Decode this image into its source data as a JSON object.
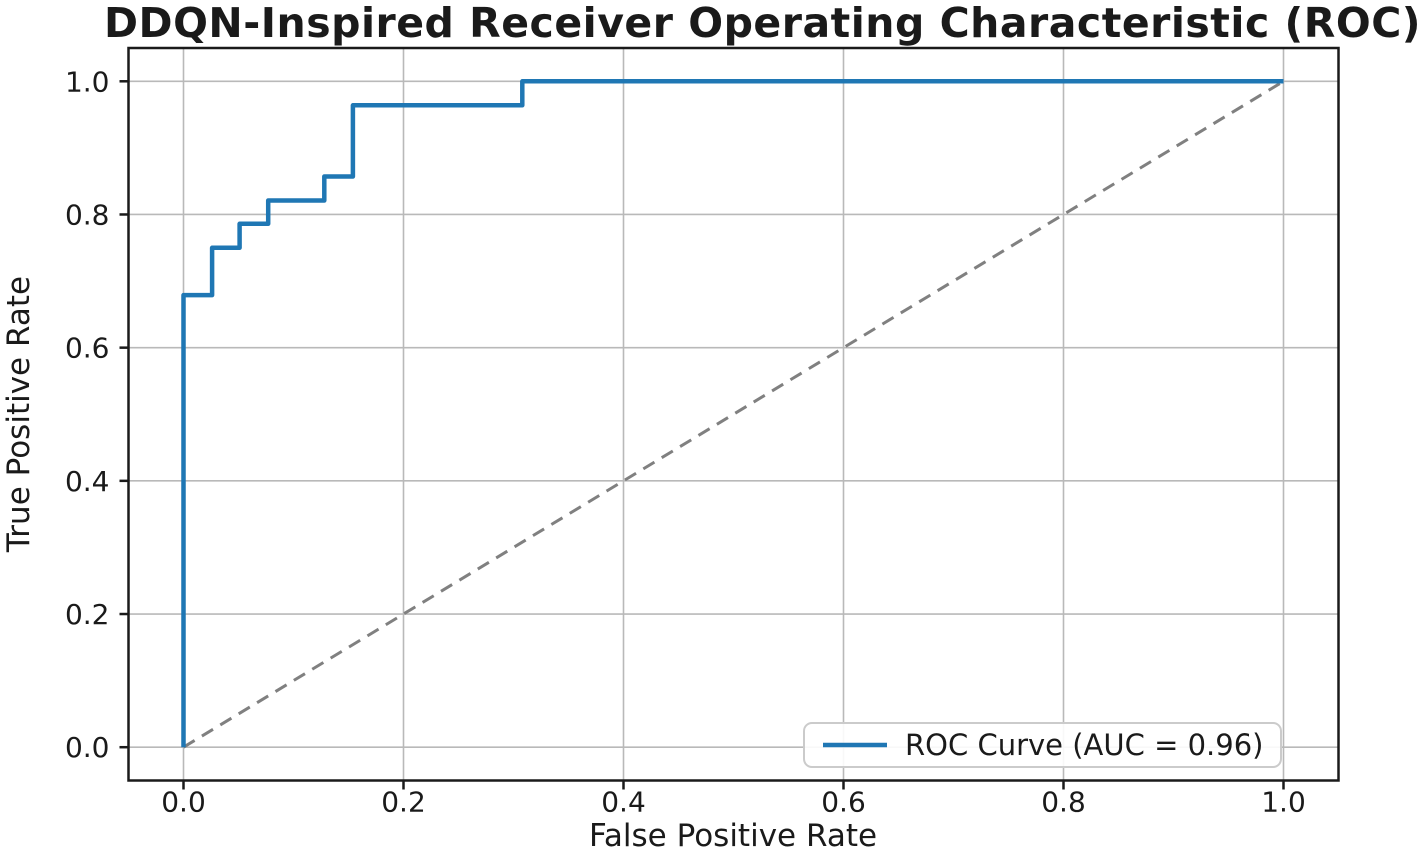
{
  "chart_data": {
    "type": "line",
    "title": "DDQN-Inspired Receiver Operating Characteristic (ROC)",
    "xlabel": "False Positive Rate",
    "ylabel": "True Positive Rate",
    "xlim": [
      -0.05,
      1.05
    ],
    "ylim": [
      -0.05,
      1.05
    ],
    "x_ticks": [
      0.0,
      0.2,
      0.4,
      0.6,
      0.8,
      1.0
    ],
    "x_tick_labels": [
      "0.0",
      "0.2",
      "0.4",
      "0.6",
      "0.8",
      "1.0"
    ],
    "y_ticks": [
      0.0,
      0.2,
      0.4,
      0.6,
      0.8,
      1.0
    ],
    "y_tick_labels": [
      "0.0",
      "0.2",
      "0.4",
      "0.6",
      "0.8",
      "1.0"
    ],
    "grid": true,
    "auc": 0.96,
    "legend": {
      "position": "lower right",
      "entries": [
        {
          "label": "ROC Curve (AUC = 0.96)",
          "color": "#1f77b4"
        }
      ]
    },
    "series": [
      {
        "name": "ROC Curve (AUC = 0.96)",
        "style": "solid",
        "color": "#1f77b4",
        "linewidth": 4.5,
        "points": [
          [
            0.0,
            0.0
          ],
          [
            0.0,
            0.679
          ],
          [
            0.026,
            0.679
          ],
          [
            0.026,
            0.75
          ],
          [
            0.051,
            0.75
          ],
          [
            0.051,
            0.786
          ],
          [
            0.077,
            0.786
          ],
          [
            0.077,
            0.821
          ],
          [
            0.128,
            0.821
          ],
          [
            0.128,
            0.857
          ],
          [
            0.154,
            0.857
          ],
          [
            0.154,
            0.964
          ],
          [
            0.308,
            0.964
          ],
          [
            0.308,
            1.0
          ],
          [
            1.0,
            1.0
          ]
        ]
      },
      {
        "name": "Chance diagonal",
        "style": "dashed",
        "color": "#808080",
        "linewidth": 3,
        "points": [
          [
            0.0,
            0.0
          ],
          [
            1.0,
            1.0
          ]
        ]
      }
    ],
    "colors": {
      "grid": "#b9b9b9",
      "spine": "#1a1a1a",
      "tick": "#1a1a1a",
      "background": "#ffffff"
    }
  }
}
